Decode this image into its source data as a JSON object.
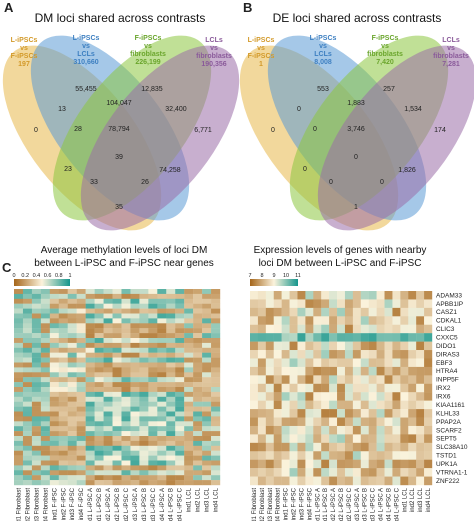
{
  "colors": {
    "lipsc": "#e8b84a",
    "fipsc": "#8cc63f",
    "lcls": "#5b9bd5",
    "fibro": "#9b6ea8",
    "heat_low": "#a5651a",
    "heat_mid": "#fbf3dc",
    "heat_high": "#14958c"
  },
  "panels": {
    "a": {
      "letter": "A",
      "title": "DM loci shared across contrasts",
      "sets": [
        {
          "label": "L-iPSCs\nvs\nF-iPSCs\n197",
          "color": "#d39a2a"
        },
        {
          "label": "L-iPSCs\nvs\nLCLs\n310,660",
          "color": "#3d7fc1"
        },
        {
          "label": "F-iPSCs\nvs\nfibroblasts\n226,199",
          "color": "#6aa52c"
        },
        {
          "label": "LCLs\nvs\nfibroblasts\n190,356",
          "color": "#8a5a9a"
        }
      ],
      "regions": [
        "0",
        "55,455",
        "12,835",
        "6,771",
        "13",
        "104,047",
        "32,400",
        "28",
        "78,794",
        "23",
        "39",
        "74,258",
        "33",
        "26",
        "35"
      ]
    },
    "b": {
      "letter": "B",
      "title": "DE loci shared across contrasts",
      "sets": [
        {
          "label": "L-iPSCs\nvs\nF-iPSCs\n1",
          "color": "#d39a2a"
        },
        {
          "label": "L-iPSCs\nvs\nLCLs\n8,008",
          "color": "#3d7fc1"
        },
        {
          "label": "F-iPSCs\nvs\nfibroblasts\n7,420",
          "color": "#6aa52c"
        },
        {
          "label": "LCLs\nvs\nfibroblasts\n7,281",
          "color": "#8a5a9a"
        }
      ],
      "regions": [
        "0",
        "553",
        "257",
        "174",
        "0",
        "1,883",
        "1,534",
        "0",
        "3,746",
        "0",
        "0",
        "1,826",
        "0",
        "0",
        "1"
      ]
    },
    "c": {
      "letter": "C",
      "title_line1": "Average methylation levels of loci DM",
      "title_line2": "between L-iPSC and F-iPSC near genes",
      "scale_ticks": [
        "0",
        "0.2",
        "0.4",
        "0.6",
        "0.8",
        "1"
      ],
      "samples": [
        "ind1 Fibroblast",
        "ind2 Fibroblast",
        "ind3 Fibroblast",
        "ind4 Fibroblast",
        "ind1 F-iPSC",
        "ind2 F-iPSC",
        "ind3 F-iPSC",
        "ind4 F-iPSC",
        "ind1 L-iPSC A",
        "ind1 L-iPSC B",
        "ind2 L-iPSC A",
        "ind2 L-iPSC B",
        "ind2 L-iPSC C",
        "ind3 L-iPSC A",
        "ind3 L-iPSC B",
        "ind3 L-iPSC C",
        "ind4 L-iPSC A",
        "ind4 L-iPSC B",
        "ind4 L-iPSC C",
        "ind1 LCL",
        "ind2 LCL",
        "ind3 LCL",
        "ind4 LCL"
      ]
    },
    "d": {
      "title_line1": "Expression levels of genes with nearby",
      "title_line2": "loci DM between L-iPSC and F-iPSC",
      "scale_ticks": [
        "7",
        "8",
        "9",
        "10",
        "11"
      ],
      "genes": [
        "ADAM33",
        "APBB1IP",
        "CASZ1",
        "CDKAL1",
        "CLIC3",
        "CXXC5",
        "DIDO1",
        "DIRAS3",
        "EBF3",
        "HTRA4",
        "INPP5F",
        "IRX2",
        "IRX6",
        "KIAA1161",
        "KLHL33",
        "PPAP2A",
        "SCARF2",
        "SEPT5",
        "SLC38A10",
        "TSTD1",
        "UPK1A",
        "VTRNA1-1",
        "ZNF222"
      ],
      "samples": [
        "ind1 Fibroblast",
        "ind2 Fibroblast",
        "ind3 Fibroblast",
        "ind4 Fibroblast",
        "ind1 F-iPSC",
        "ind2 F-iPSC",
        "ind3 F-iPSC",
        "ind4 F-iPSC",
        "ind1 L-iPSC A",
        "ind1 L-iPSC B",
        "ind2 L-iPSC A",
        "ind2 L-iPSC B",
        "ind2 L-iPSC C",
        "ind3 L-iPSC A",
        "ind3 L-iPSC B",
        "ind3 L-iPSC C",
        "ind4 L-iPSC A",
        "ind4 L-iPSC B",
        "ind4 L-iPSC C",
        "ind1 LCL",
        "ind2 LCL",
        "ind3 LCL",
        "ind4 LCL"
      ]
    }
  }
}
